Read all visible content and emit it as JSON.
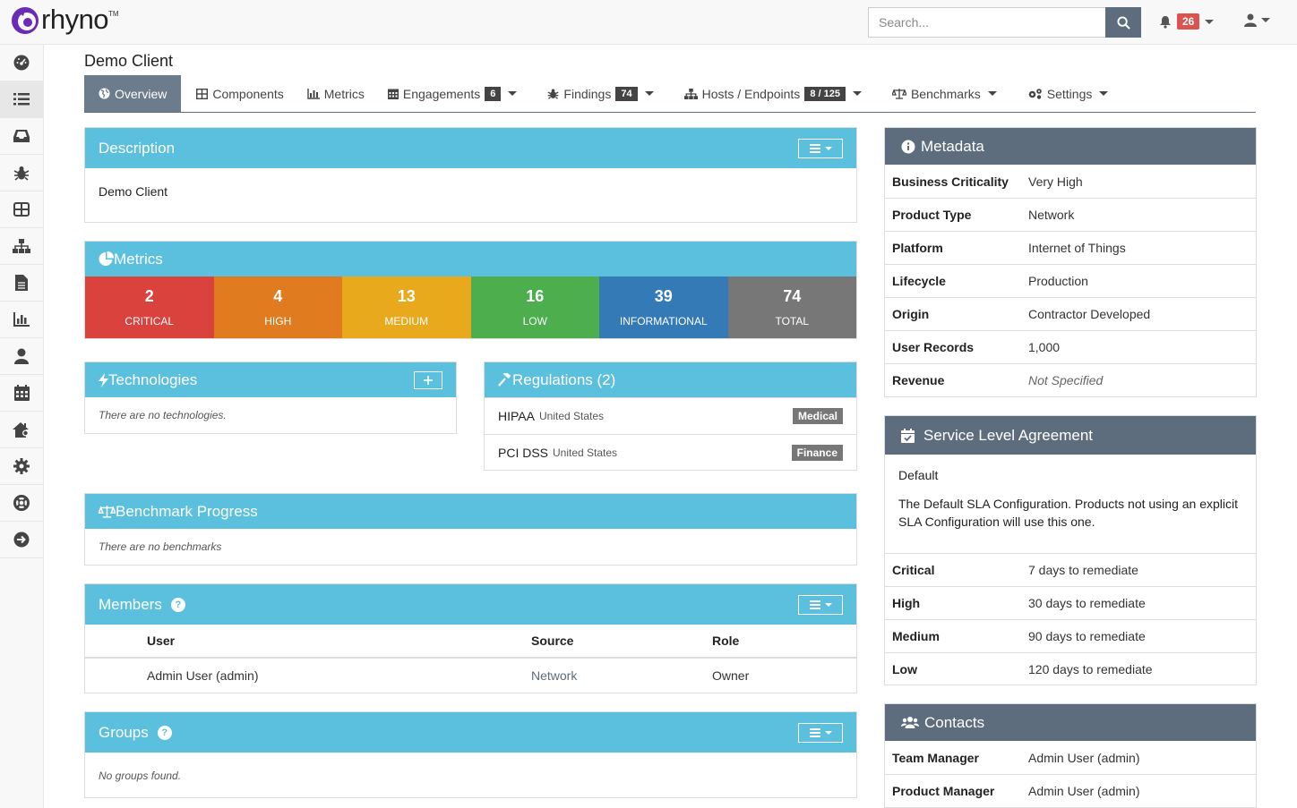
{
  "brand": {
    "name": "rhyno",
    "tm": "TM"
  },
  "search": {
    "placeholder": "Search..."
  },
  "notifications": {
    "count": "26"
  },
  "page": {
    "title": "Demo Client"
  },
  "tabs": [
    {
      "label": "Overview",
      "icon": "globe-icon"
    },
    {
      "label": "Components",
      "icon": "table-icon"
    },
    {
      "label": "Metrics",
      "icon": "bar-chart-icon"
    },
    {
      "label": "Engagements",
      "icon": "calendar-icon",
      "count": "6"
    },
    {
      "label": "Findings",
      "icon": "bug-icon",
      "count": "74"
    },
    {
      "label": "Hosts / Endpoints",
      "icon": "sitemap-icon",
      "count": "8 / 125"
    },
    {
      "label": "Benchmarks",
      "icon": "balance-icon"
    },
    {
      "label": "Settings",
      "icon": "cogs-icon"
    }
  ],
  "description": {
    "title": "Description",
    "text": "Demo Client"
  },
  "metrics": {
    "title": "Metrics",
    "cells": [
      {
        "value": "2",
        "label": "CRITICAL",
        "color": "#d9423d"
      },
      {
        "value": "4",
        "label": "HIGH",
        "color": "#e07b20"
      },
      {
        "value": "13",
        "label": "MEDIUM",
        "color": "#e8aa1c"
      },
      {
        "value": "16",
        "label": "LOW",
        "color": "#4cae4c"
      },
      {
        "value": "39",
        "label": "INFORMATIONAL",
        "color": "#337ab7"
      },
      {
        "value": "74",
        "label": "TOTAL",
        "color": "#777777"
      }
    ]
  },
  "technologies": {
    "title": "Technologies",
    "empty": "There are no technologies."
  },
  "regulations": {
    "title": "Regulations (2)",
    "items": [
      {
        "name": "HIPAA",
        "country": "United States",
        "tag": "Medical"
      },
      {
        "name": "PCI DSS",
        "country": "United States",
        "tag": "Finance"
      }
    ]
  },
  "benchmark": {
    "title": "Benchmark Progress",
    "empty": "There are no benchmarks"
  },
  "members": {
    "title": "Members",
    "columns": [
      "User",
      "Source",
      "Role"
    ],
    "rows": [
      {
        "user": "Admin User (admin)",
        "source": "Network",
        "role": "Owner"
      }
    ]
  },
  "groups": {
    "title": "Groups",
    "empty": "No groups found."
  },
  "metadata": {
    "title": "Metadata",
    "rows": [
      {
        "k": "Business Criticality",
        "v": "Very High"
      },
      {
        "k": "Product Type",
        "v": "Network"
      },
      {
        "k": "Platform",
        "v": "Internet of Things"
      },
      {
        "k": "Lifecycle",
        "v": "Production"
      },
      {
        "k": "Origin",
        "v": "Contractor Developed"
      },
      {
        "k": "User Records",
        "v": "1,000"
      },
      {
        "k": "Revenue",
        "v": "Not Specified"
      }
    ]
  },
  "sla": {
    "title": "Service Level Agreement",
    "name": "Default",
    "description": "The Default SLA Configuration. Products not using an explicit SLA Configuration will use this one.",
    "rows": [
      {
        "k": "Critical",
        "v": "7 days to remediate"
      },
      {
        "k": "High",
        "v": "30 days to remediate"
      },
      {
        "k": "Medium",
        "v": "90 days to remediate"
      },
      {
        "k": "Low",
        "v": "120 days to remediate"
      }
    ]
  },
  "contacts": {
    "title": "Contacts",
    "rows": [
      {
        "k": "Team Manager",
        "v": "Admin User (admin)"
      },
      {
        "k": "Product Manager",
        "v": "Admin User (admin)"
      }
    ]
  },
  "sidebar_icons": [
    "dashboard-icon",
    "list-icon",
    "inbox-icon",
    "bug-icon",
    "table-icon",
    "sitemap-icon",
    "file-icon",
    "bar-chart-icon",
    "user-icon",
    "calendar-icon",
    "home-settings-icon",
    "gear-icon",
    "lifebuoy-icon",
    "arrow-right-circle-icon"
  ]
}
